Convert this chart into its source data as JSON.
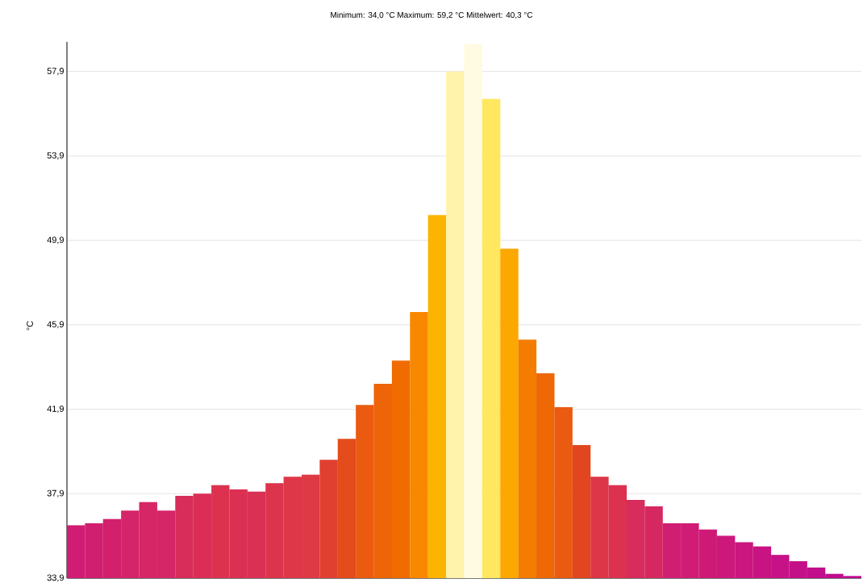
{
  "chart_data": {
    "type": "bar",
    "title": "Minimum: 34,0 °C Maximum: 59,2 °C Mittelwert: 40,3 °C",
    "ylabel": "°C",
    "categories": [
      null,
      null,
      null,
      null,
      null,
      null,
      null,
      null,
      null,
      null,
      null,
      null,
      null,
      null,
      null,
      null,
      null,
      null,
      null,
      null,
      null,
      null,
      null,
      null,
      null,
      null,
      null,
      null,
      null,
      null,
      null,
      null,
      null,
      null,
      null,
      null,
      null,
      null,
      null,
      null,
      null,
      null,
      null,
      null
    ],
    "values": [
      36.4,
      36.5,
      36.7,
      37.1,
      37.5,
      37.1,
      37.8,
      37.9,
      38.3,
      38.1,
      38.0,
      38.4,
      38.7,
      38.8,
      39.5,
      40.5,
      42.1,
      43.1,
      44.2,
      46.5,
      51.1,
      57.9,
      59.2,
      56.6,
      49.5,
      45.2,
      43.6,
      42.0,
      40.2,
      38.7,
      38.3,
      37.6,
      37.3,
      36.5,
      36.5,
      36.2,
      35.9,
      35.6,
      35.4,
      35.0,
      34.7,
      34.4,
      34.1,
      34.0
    ],
    "colors": [
      "#d01c72",
      "#d01e70",
      "#d2206c",
      "#d4246a",
      "#d62666",
      "#d52668",
      "#d82c5a",
      "#da2e56",
      "#dc3250",
      "#db3052",
      "#da3054",
      "#dc344c",
      "#de3848",
      "#de3a46",
      "#e04030",
      "#e44c1c",
      "#ea5a10",
      "#ee6408",
      "#f06c00",
      "#f88800",
      "#fcb400",
      "#fff2aa",
      "#fffae2",
      "#ffe860",
      "#fca800",
      "#f47c00",
      "#ee6806",
      "#ea5a10",
      "#e24620",
      "#dc3648",
      "#dc3250",
      "#d82c5c",
      "#d62860",
      "#d01e72",
      "#d01c74",
      "#ce1a76",
      "#cc187a",
      "#ca167e",
      "#c81482",
      "#c61286",
      "#c41088",
      "#c20e8a",
      "#c00c8c",
      "#be0a8e"
    ],
    "ylim": [
      33.9,
      59.3
    ],
    "yticks": [
      {
        "value": 33.9,
        "label": "33,9"
      },
      {
        "value": 37.9,
        "label": "37,9"
      },
      {
        "value": 41.9,
        "label": "41,9"
      },
      {
        "value": 45.9,
        "label": "45,9"
      },
      {
        "value": 49.9,
        "label": "49,9"
      },
      {
        "value": 53.9,
        "label": "53,9"
      },
      {
        "value": 57.9,
        "label": "57,9"
      }
    ],
    "grid": "y",
    "tick_labels": "y"
  }
}
